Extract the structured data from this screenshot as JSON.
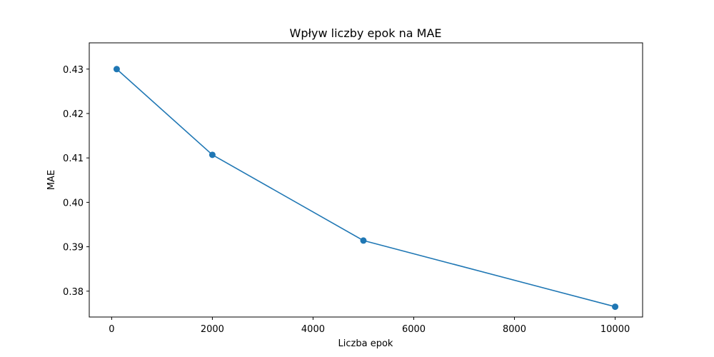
{
  "chart_data": {
    "type": "line",
    "title": "Wpływ liczby epok na MAE",
    "xlabel": "Liczba epok",
    "ylabel": "MAE",
    "x": [
      100,
      2000,
      5000,
      10000
    ],
    "series": [
      {
        "values": [
          0.43,
          0.4107,
          0.3914,
          0.3765
        ],
        "color": "#1f77b4",
        "marker": "circle"
      }
    ],
    "xlim": [
      -445,
      10545
    ],
    "ylim": [
      0.37418,
      0.43591
    ],
    "xticks": [
      0,
      2000,
      4000,
      6000,
      8000,
      10000
    ],
    "xtick_labels": [
      "0",
      "2000",
      "4000",
      "6000",
      "8000",
      "10000"
    ],
    "yticks": [
      0.38,
      0.39,
      0.4,
      0.41,
      0.42,
      0.43
    ],
    "ytick_labels": [
      "0.38",
      "0.39",
      "0.40",
      "0.41",
      "0.42",
      "0.43"
    ],
    "grid": false,
    "legend": "none"
  }
}
